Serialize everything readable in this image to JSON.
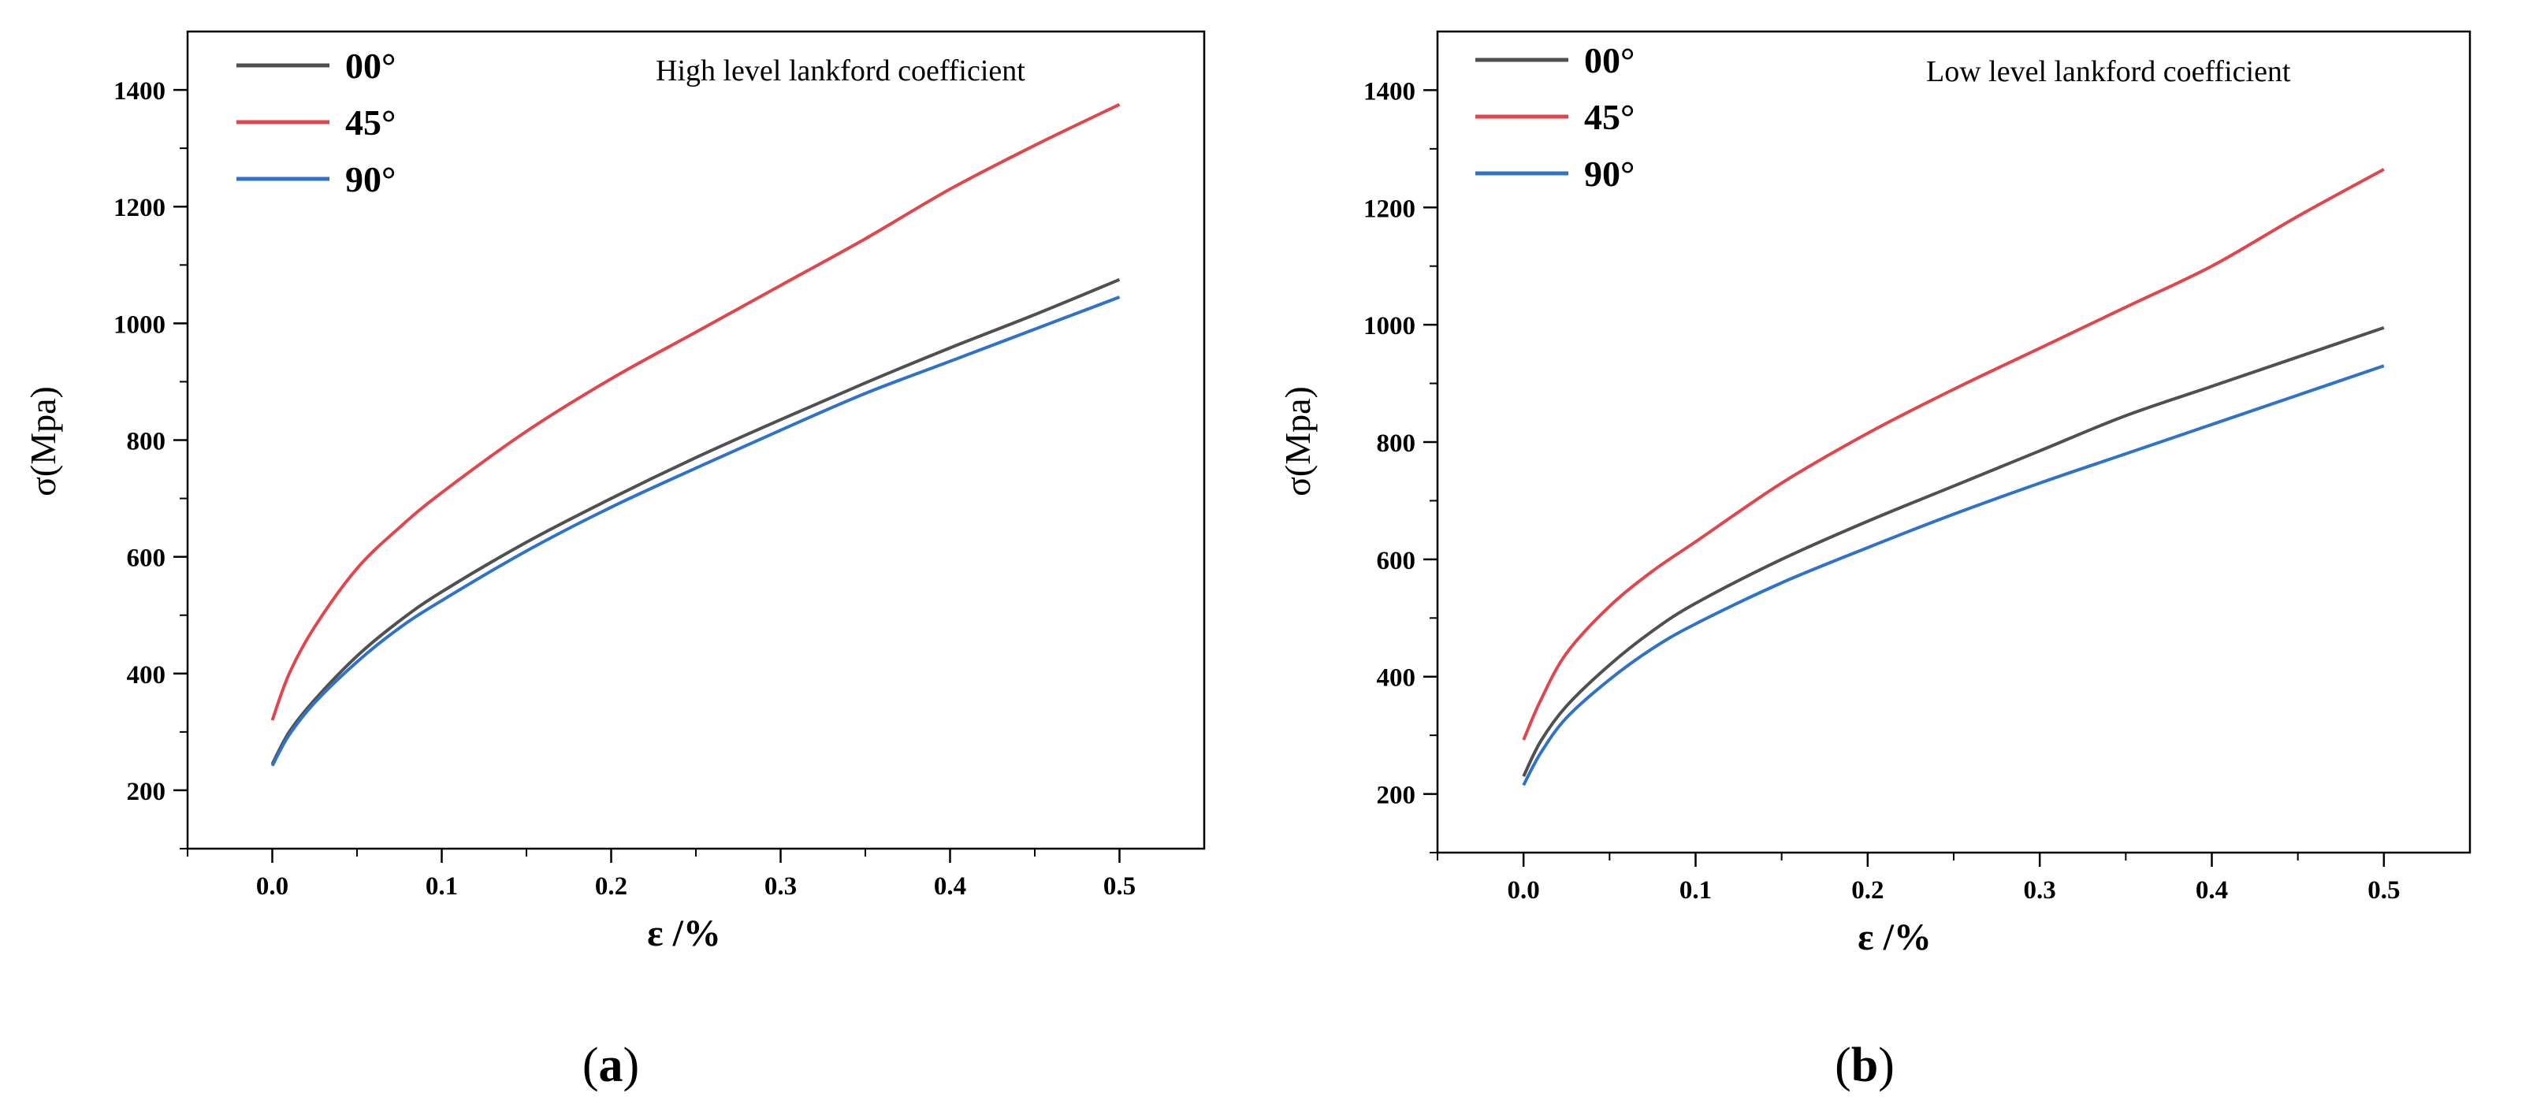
{
  "chart_data": [
    {
      "type": "line",
      "caption_letter": "a",
      "annotation": "High level lankford coefficient",
      "xlabel": "ε /%",
      "ylabel": "σ(Mpa)",
      "xlim": [
        -0.05,
        0.55
      ],
      "ylim": [
        100,
        1500
      ],
      "xticks": [
        "0.0",
        "0.1",
        "0.2",
        "0.3",
        "0.4",
        "0.5"
      ],
      "yticks": [
        "200",
        "400",
        "600",
        "800",
        "1000",
        "1200",
        "1400"
      ],
      "x": [
        0.0,
        0.01,
        0.025,
        0.05,
        0.075,
        0.1,
        0.15,
        0.2,
        0.25,
        0.3,
        0.35,
        0.4,
        0.45,
        0.5
      ],
      "series": [
        {
          "name": "00°",
          "color": "#505050",
          "values": [
            245,
            300,
            355,
            430,
            490,
            540,
            625,
            700,
            770,
            835,
            898,
            958,
            1015,
            1075
          ]
        },
        {
          "name": "45°",
          "color": "#e0474c",
          "values": [
            320,
            400,
            480,
            580,
            650,
            710,
            815,
            905,
            985,
            1065,
            1145,
            1230,
            1305,
            1375
          ]
        },
        {
          "name": "90°",
          "color": "#2f73c9",
          "values": [
            242,
            295,
            350,
            420,
            478,
            525,
            610,
            685,
            752,
            817,
            880,
            935,
            990,
            1045
          ]
        }
      ]
    },
    {
      "type": "line",
      "caption_letter": "b",
      "annotation": "Low level lankford coefficient",
      "xlabel": "ε /%",
      "ylabel": "σ(Mpa)",
      "xlim": [
        -0.05,
        0.55
      ],
      "ylim": [
        100,
        1500
      ],
      "xticks": [
        "0.0",
        "0.1",
        "0.2",
        "0.3",
        "0.4",
        "0.5"
      ],
      "yticks": [
        "200",
        "400",
        "600",
        "800",
        "1000",
        "1200",
        "1400"
      ],
      "x": [
        0.0,
        0.01,
        0.025,
        0.05,
        0.075,
        0.1,
        0.15,
        0.2,
        0.25,
        0.3,
        0.35,
        0.4,
        0.45,
        0.5
      ],
      "series": [
        {
          "name": "00°",
          "color": "#505050",
          "values": [
            230,
            290,
            350,
            420,
            478,
            525,
            600,
            665,
            725,
            785,
            845,
            895,
            945,
            995
          ]
        },
        {
          "name": "45°",
          "color": "#e0474c",
          "values": [
            292,
            360,
            440,
            520,
            580,
            630,
            730,
            815,
            890,
            960,
            1030,
            1100,
            1185,
            1265
          ]
        },
        {
          "name": "90°",
          "color": "#2f73c9",
          "values": [
            215,
            270,
            330,
            395,
            448,
            490,
            560,
            620,
            677,
            730,
            780,
            830,
            880,
            930
          ]
        }
      ]
    }
  ]
}
